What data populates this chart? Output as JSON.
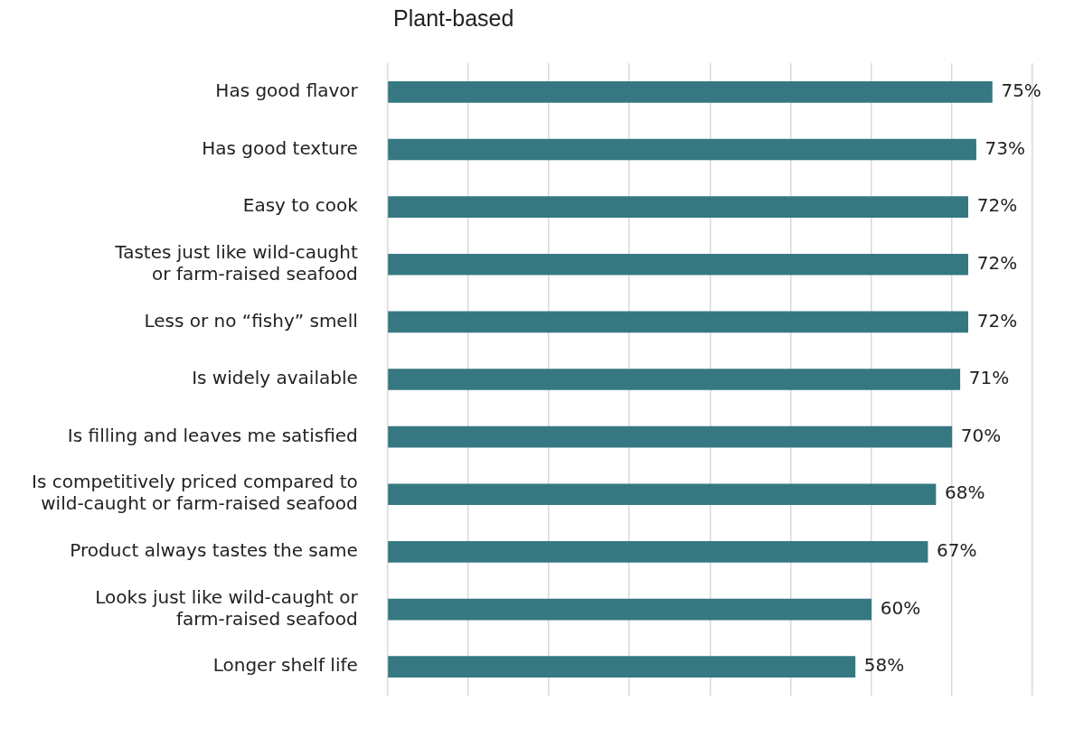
{
  "chart_data": {
    "type": "bar",
    "orientation": "horizontal",
    "title": "Plant-based",
    "categories": [
      "Has good flavor",
      "Has good texture",
      "Easy to cook",
      "Tastes just like wild-caught\nor farm-raised seafood",
      "Less or no “fishy” smell",
      "Is widely available",
      "Is filling and leaves me satisfied",
      "Is competitively priced compared to\nwild-caught or farm-raised seafood",
      "Product always tastes the same",
      "Looks just like wild-caught or\nfarm-raised seafood",
      "Longer shelf life"
    ],
    "values": [
      75,
      73,
      72,
      72,
      72,
      71,
      70,
      68,
      67,
      60,
      58
    ],
    "value_labels": [
      "75%",
      "73%",
      "72%",
      "72%",
      "72%",
      "71%",
      "70%",
      "68%",
      "67%",
      "60%",
      "58%"
    ],
    "color": "#367882",
    "xlim": [
      0,
      80
    ],
    "xticks": [
      {
        "value": 0,
        "label": null
      },
      {
        "value": 10,
        "label": null
      },
      {
        "value": 20,
        "label": null
      },
      {
        "value": 30,
        "label": null
      },
      {
        "value": 40,
        "label": null
      },
      {
        "value": 50,
        "label": null
      },
      {
        "value": 60,
        "label": null
      },
      {
        "value": 70,
        "label": null
      },
      {
        "value": 80,
        "label": null
      }
    ],
    "grid": "x",
    "tick_labels": "y",
    "legend": false
  }
}
